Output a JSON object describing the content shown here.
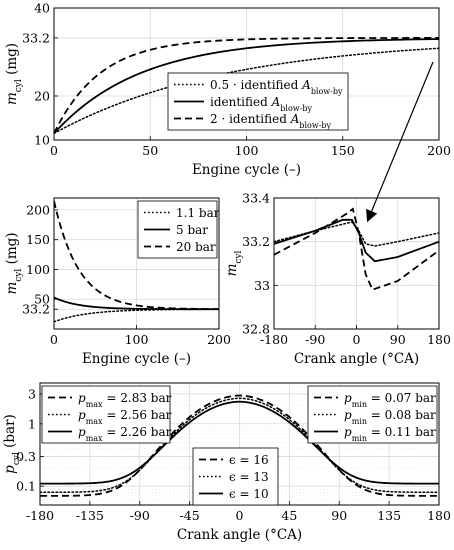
{
  "chart_data": [
    {
      "id": "a",
      "type": "line",
      "xlabel": "Engine cycle (–)",
      "ylabel": "m_cyl (mg)",
      "xlim": [
        0,
        200
      ],
      "ylim": [
        10,
        40
      ],
      "xticks": [
        0,
        50,
        100,
        150,
        200
      ],
      "yticks": [
        10,
        20,
        33.2,
        40
      ],
      "yticklabels": [
        "10",
        "20",
        "33.2",
        "40"
      ],
      "grid": true,
      "legend_position": "center-right",
      "series": [
        {
          "name": "0.5 · identified A_blow-by",
          "dash": "dotted",
          "start": 11.5,
          "end": 33.2,
          "tau": 90
        },
        {
          "name": "identified A_blow-by",
          "dash": "solid",
          "start": 11.5,
          "end": 33.2,
          "tau": 45
        },
        {
          "name": "2 · identified A_blow-by",
          "dash": "dashed",
          "start": 11.5,
          "end": 33.2,
          "tau": 24
        }
      ]
    },
    {
      "id": "b",
      "type": "line",
      "xlabel": "Engine cycle (–)",
      "ylabel": "m_cyl (mg)",
      "xlim": [
        0,
        200
      ],
      "ylim": [
        0,
        220
      ],
      "xticks": [
        0,
        100,
        200
      ],
      "yticks": [
        33.2,
        50,
        100,
        150,
        200
      ],
      "yticklabels": [
        "33.2",
        "50",
        "100",
        "150",
        "200"
      ],
      "grid": true,
      "legend_position": "top-right",
      "series": [
        {
          "name": "1.1 bar",
          "dash": "dotted",
          "start": 12,
          "end": 33.2,
          "tau": 40
        },
        {
          "name": "5 bar",
          "dash": "solid",
          "start": 53,
          "end": 33.2,
          "tau": 30
        },
        {
          "name": "20 bar",
          "dash": "dashed",
          "start": 215,
          "end": 33.2,
          "tau": 30
        }
      ]
    },
    {
      "id": "c",
      "type": "line",
      "xlabel": "Crank angle (°CA)",
      "ylabel": "m_cyl",
      "xlim": [
        -180,
        180
      ],
      "ylim": [
        32.8,
        33.4
      ],
      "xticks": [
        -180,
        -90,
        0,
        90,
        180
      ],
      "yticks": [
        32.8,
        33,
        33.2,
        33.4
      ],
      "yticklabels": [
        "32.8",
        "33",
        "33.2",
        "33.4"
      ],
      "grid": true,
      "series": [
        {
          "name": "dotted",
          "dash": "dotted",
          "points": [
            [
              -180,
              33.2
            ],
            [
              -90,
              33.25
            ],
            [
              -30,
              33.28
            ],
            [
              -10,
              33.29
            ],
            [
              5,
              33.25
            ],
            [
              20,
              33.19
            ],
            [
              40,
              33.18
            ],
            [
              90,
              33.2
            ],
            [
              180,
              33.24
            ]
          ]
        },
        {
          "name": "solid",
          "dash": "solid",
          "points": [
            [
              -180,
              33.19
            ],
            [
              -90,
              33.25
            ],
            [
              -30,
              33.3
            ],
            [
              -10,
              33.3
            ],
            [
              5,
              33.24
            ],
            [
              20,
              33.15
            ],
            [
              40,
              33.11
            ],
            [
              90,
              33.13
            ],
            [
              180,
              33.2
            ]
          ]
        },
        {
          "name": "dashed",
          "dash": "dashed",
          "points": [
            [
              -180,
              33.14
            ],
            [
              -90,
              33.24
            ],
            [
              -20,
              33.33
            ],
            [
              -8,
              33.35
            ],
            [
              5,
              33.24
            ],
            [
              20,
              33.05
            ],
            [
              35,
              32.98
            ],
            [
              90,
              33.02
            ],
            [
              180,
              33.16
            ]
          ]
        }
      ],
      "annotation": "arrow from top panel to dip near 20 °CA"
    },
    {
      "id": "d",
      "type": "line",
      "xlabel": "Crank angle (°CA)",
      "ylabel": "p_cyl (bar)",
      "yscale": "log",
      "xlim": [
        -180,
        180
      ],
      "ylim": [
        0.05,
        4.5
      ],
      "xticks": [
        -180,
        -135,
        -90,
        -45,
        0,
        45,
        90,
        135,
        180
      ],
      "yticks": [
        0.1,
        0.3,
        1,
        3
      ],
      "yticklabels": [
        "0.1",
        "0.3",
        "1",
        "3"
      ],
      "grid": true,
      "legends": [
        {
          "position": "top-left",
          "entries": [
            {
              "dash": "dashed",
              "label": "p_max = 2.83 bar"
            },
            {
              "dash": "dotted",
              "label": "p_max = 2.56 bar"
            },
            {
              "dash": "solid",
              "label": "p_max = 2.26 bar"
            }
          ]
        },
        {
          "position": "top-right",
          "entries": [
            {
              "dash": "dashed",
              "label": "p_min = 0.07 bar"
            },
            {
              "dash": "dotted",
              "label": "p_min = 0.08 bar"
            },
            {
              "dash": "solid",
              "label": "p_min = 0.11 bar"
            }
          ]
        },
        {
          "position": "bottom-center",
          "entries": [
            {
              "dash": "dashed",
              "label": "ϵ = 16"
            },
            {
              "dash": "dotted",
              "label": "ϵ = 13"
            },
            {
              "dash": "solid",
              "label": "ϵ = 10"
            }
          ]
        }
      ],
      "series": [
        {
          "name": "ϵ = 16",
          "dash": "dashed",
          "p_max": 2.83,
          "p_min": 0.07
        },
        {
          "name": "ϵ = 13",
          "dash": "dotted",
          "p_max": 2.56,
          "p_min": 0.08
        },
        {
          "name": "ϵ = 10",
          "dash": "solid",
          "p_max": 2.26,
          "p_min": 0.11
        }
      ]
    }
  ]
}
